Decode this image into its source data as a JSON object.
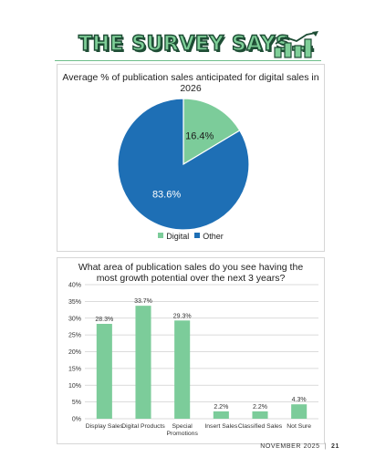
{
  "header": {
    "title": "THE SURVEY SAYS...",
    "icon": "bar-growth-icon",
    "colors": {
      "fill": "#7fcf98",
      "outline": "#1e4d35"
    }
  },
  "footer": {
    "month": "NOVEMBER 2025",
    "separator": "|",
    "page": "21"
  },
  "chart_data": [
    {
      "type": "pie",
      "title": "Average % of publication sales anticipated for digital sales in 2026",
      "slices": [
        {
          "name": "Digital",
          "value": 16.4,
          "label": "16.4%",
          "color": "#7ccc9a"
        },
        {
          "name": "Other",
          "value": 83.6,
          "label": "83.6%",
          "color": "#1e6fb5"
        }
      ],
      "legend": {
        "position": "bottom",
        "entries": [
          "Digital",
          "Other"
        ]
      }
    },
    {
      "type": "bar",
      "title_lines": [
        "What area of publication sales do you see having the",
        "most growth potential over the next 3 years?"
      ],
      "categories": [
        [
          "Display Sales"
        ],
        [
          "Digital Products"
        ],
        [
          "Special",
          "Promotions"
        ],
        [
          "Insert Sales"
        ],
        [
          "Classified Sales"
        ],
        [
          "Not Sure"
        ]
      ],
      "values": [
        28.3,
        33.7,
        29.3,
        2.2,
        2.2,
        4.3
      ],
      "data_labels": [
        "28.3%",
        "33.7%",
        "29.3%",
        "2.2%",
        "2.2%",
        "4.3%"
      ],
      "ylim": [
        0,
        40
      ],
      "yticks": [
        0,
        5,
        10,
        15,
        20,
        25,
        30,
        35,
        40
      ],
      "ytick_labels": [
        "0%",
        "5%",
        "10%",
        "15%",
        "20%",
        "25%",
        "30%",
        "35%",
        "40%"
      ],
      "grid": true,
      "bar_color": "#7ccc9a",
      "xlabel": "",
      "ylabel": ""
    }
  ]
}
